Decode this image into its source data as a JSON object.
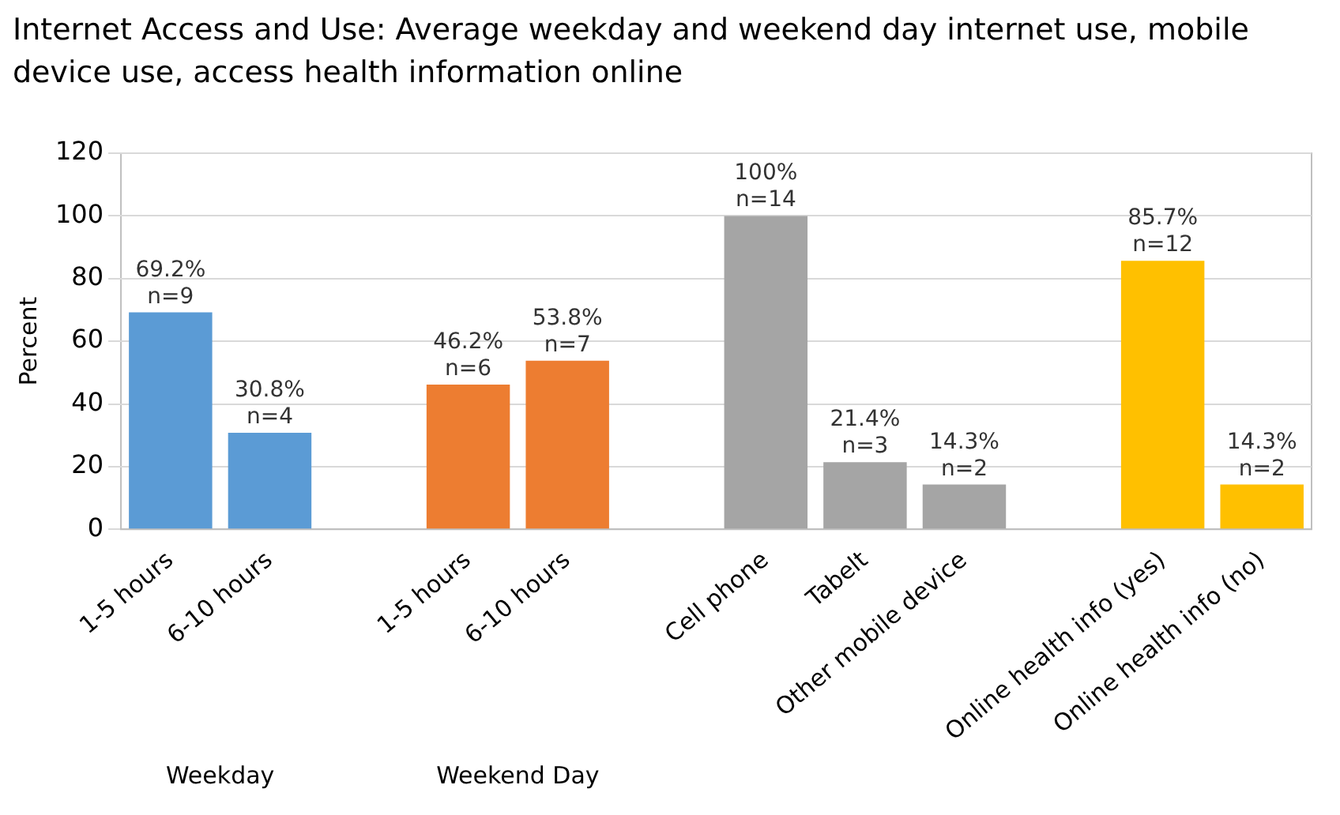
{
  "chart_data": {
    "type": "bar",
    "title": "Internet Access and Use: Average weekday and weekend day internet use, mobile device use, access health information online",
    "ylabel": "Percent",
    "categories": [
      "1-5 hours",
      "6-10 hours",
      null,
      "1-5 hours",
      "6-10 hours",
      null,
      "Cell phone",
      "Tabelt",
      "Other mobile device",
      null,
      "Online health info (yes)",
      "Online health info (no)"
    ],
    "values": [
      69.2,
      30.8,
      null,
      46.2,
      53.8,
      null,
      100,
      21.4,
      14.3,
      null,
      85.7,
      14.3
    ],
    "colors": [
      "#5b9bd5",
      "#5b9bd5",
      "#5b9bd5",
      "#ed7d31",
      "#ed7d31",
      "#ed7d31",
      "#a5a5a5",
      "#a5a5a5",
      "#a5a5a5",
      "#ffc000",
      "#ffc000",
      "#ffc000"
    ],
    "value_labels": [
      "69.2%\nn=9",
      "30.8%\nn=4",
      null,
      "46.2%\nn=6",
      "53.8%\nn=7",
      null,
      "100%\nn=14",
      "21.4%\nn=3",
      "14.3%\nn=2",
      null,
      "85.7%\nn=12",
      "14.3%\nn=2"
    ],
    "ylim": [
      0,
      120
    ],
    "yticks": [
      0,
      20,
      40,
      60,
      80,
      100,
      120
    ],
    "grid": "y",
    "legend": false,
    "annotations": [
      "Weekday",
      "Weekend Day"
    ]
  }
}
